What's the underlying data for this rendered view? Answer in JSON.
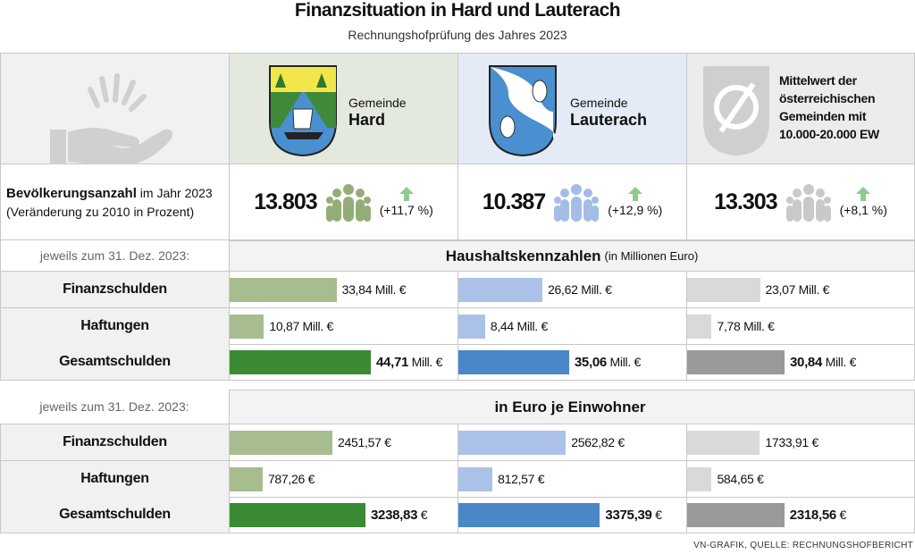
{
  "title": "Finanzsituation in Hard und Lauterach",
  "subtitle": "Rechnungshofprüfung des Jahres 2023",
  "columns": [
    {
      "prefix": "Gemeinde",
      "name": "Hard",
      "light": "#a7bc8f",
      "dark": "#3b8a34",
      "header_bg": "#e4e9dd",
      "people": "#94ad78"
    },
    {
      "prefix": "Gemeinde",
      "name": "Lauterach",
      "light": "#abc1e7",
      "dark": "#4a87c9",
      "header_bg": "#e4eaf6",
      "people": "#a3bde6"
    },
    {
      "prefix": "",
      "name": "Mittelwert der österreichischen Gemeinden mit 10.000-20.000 EW",
      "light": "#d9d9d9",
      "dark": "#9a9a9a",
      "header_bg": "#ececec",
      "people": "#c9c9c9"
    }
  ],
  "population": {
    "label_bold": "Bevölkerungsanzahl",
    "label_rest": " im Jahr 2023",
    "label_line2": "(Veränderung zu 2010 in Prozent)",
    "values": [
      "13.803",
      "10.387",
      "13.303"
    ],
    "changes": [
      "(+11,7 %)",
      "(+12,9 %)",
      "(+8,1 %)"
    ],
    "arrow_color": "#8fcb8f"
  },
  "chart_data": [
    {
      "type": "bar",
      "title": "Haushaltskennzahlen",
      "title_note": "(in Millionen Euro)",
      "date_label": "jeweils zum 31. Dez. 2023:",
      "categories": [
        "Finanzschulden",
        "Haftungen",
        "Gesamtschulden"
      ],
      "unit": "Mill. €",
      "series": [
        {
          "name": "Hard",
          "values": [
            33.84,
            10.87,
            44.71
          ],
          "labels": [
            "33,84",
            "10,87",
            "44,71"
          ]
        },
        {
          "name": "Lauterach",
          "values": [
            26.62,
            8.44,
            35.06
          ],
          "labels": [
            "26,62",
            "8,44",
            "35,06"
          ]
        },
        {
          "name": "Mittelwert",
          "values": [
            23.07,
            7.78,
            30.84
          ],
          "labels": [
            "23,07",
            "7,78",
            "30,84"
          ]
        }
      ]
    },
    {
      "type": "bar",
      "title": "in Euro je Einwohner",
      "title_note": "",
      "date_label": "jeweils zum 31. Dez. 2023:",
      "categories": [
        "Finanzschulden",
        "Haftungen",
        "Gesamtschulden"
      ],
      "unit": "€",
      "series": [
        {
          "name": "Hard",
          "values": [
            2451.57,
            787.26,
            3238.83
          ],
          "labels": [
            "2451,57",
            "787,26",
            "3238,83"
          ]
        },
        {
          "name": "Lauterach",
          "values": [
            2562.82,
            812.57,
            3375.39
          ],
          "labels": [
            "2562,82",
            "812,57",
            "3375,39"
          ]
        },
        {
          "name": "Mittelwert",
          "values": [
            1733.91,
            584.65,
            2318.56
          ],
          "labels": [
            "1733,91",
            "584,65",
            "2318,56"
          ]
        }
      ]
    }
  ],
  "footer": "VN-GRAFIK, QUELLE: RECHNUNGSHOFBERICHT"
}
